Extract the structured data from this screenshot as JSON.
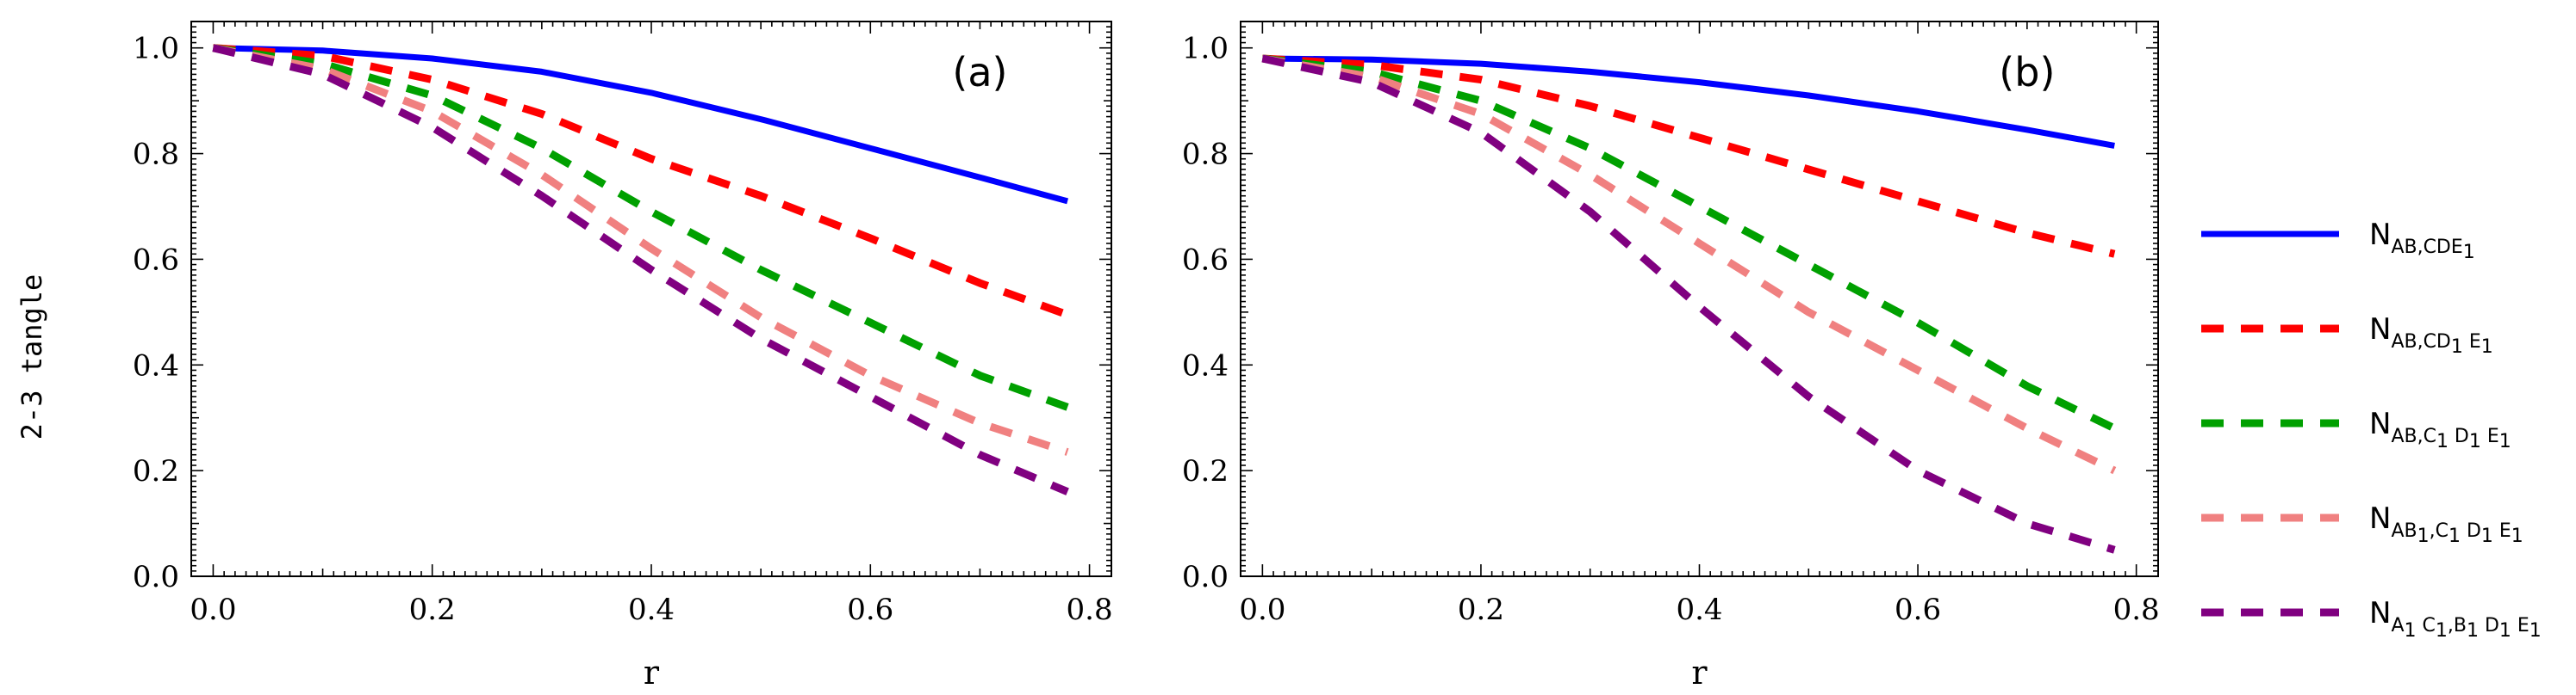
{
  "figure": {
    "ylabel": "2-3 tangle",
    "xlabel": "r"
  },
  "legend": [
    {
      "base": "N",
      "sub": "AB,CDE",
      "sub2": "1",
      "rest": []
    },
    {
      "base": "N",
      "sub": "AB,CD",
      "sub2": "1",
      "rest": [
        {
          "t": " E",
          "s": "1"
        }
      ]
    },
    {
      "base": "N",
      "sub": "AB,C",
      "sub2": "1",
      "rest": [
        {
          "t": " D",
          "s": "1"
        },
        {
          "t": " E",
          "s": "1"
        }
      ]
    },
    {
      "base": "N",
      "sub": "AB",
      "sub2": "1",
      "rest": [
        {
          "t": ",C",
          "s": "1"
        },
        {
          "t": " D",
          "s": "1"
        },
        {
          "t": " E",
          "s": "1"
        }
      ]
    },
    {
      "base": "N",
      "sub": "A",
      "sub2": "1",
      "rest": [
        {
          "t": " C",
          "s": "1"
        },
        {
          "t": ",B",
          "s": "1"
        },
        {
          "t": " D",
          "s": "1"
        },
        {
          "t": " E",
          "s": "1"
        }
      ]
    }
  ],
  "chart_data": [
    {
      "type": "line",
      "panel_label": "(a)",
      "xlabel": "r",
      "ylabel": "2-3 tangle",
      "xlim": [
        -0.02,
        0.82
      ],
      "ylim": [
        0.0,
        1.05
      ],
      "xticks": [
        "0.0",
        "0.2",
        "0.4",
        "0.6",
        "0.8"
      ],
      "yticks": [
        "0.0",
        "0.2",
        "0.4",
        "0.6",
        "0.8",
        "1.0"
      ],
      "x": [
        0.0,
        0.1,
        0.2,
        0.3,
        0.4,
        0.5,
        0.6,
        0.7,
        0.78
      ],
      "series": [
        {
          "name": "N_{AB,CDE1}",
          "color": "#0000ff",
          "dash": "solid",
          "values": [
            1.0,
            0.995,
            0.98,
            0.955,
            0.915,
            0.865,
            0.81,
            0.755,
            0.71
          ]
        },
        {
          "name": "N_{AB,CD1E1}",
          "color": "#ff0000",
          "dash": "dashed",
          "values": [
            1.0,
            0.985,
            0.94,
            0.875,
            0.79,
            0.72,
            0.64,
            0.555,
            0.495
          ]
        },
        {
          "name": "N_{AB,C1D1E1}",
          "color": "#00a000",
          "dash": "dashed",
          "values": [
            1.0,
            0.97,
            0.91,
            0.81,
            0.69,
            0.58,
            0.48,
            0.38,
            0.32
          ]
        },
        {
          "name": "N_{AB1,C1D1E1}",
          "color": "#f08080",
          "dash": "dashed",
          "values": [
            1.0,
            0.96,
            0.88,
            0.76,
            0.62,
            0.49,
            0.38,
            0.29,
            0.235
          ]
        },
        {
          "name": "N_{A1C1,B1D1E1}",
          "color": "#800080",
          "dash": "dashed",
          "values": [
            1.0,
            0.95,
            0.85,
            0.72,
            0.58,
            0.45,
            0.34,
            0.23,
            0.16
          ]
        }
      ]
    },
    {
      "type": "line",
      "panel_label": "(b)",
      "xlabel": "r",
      "ylabel": "2-3 tangle",
      "xlim": [
        -0.02,
        0.82
      ],
      "ylim": [
        0.0,
        1.05
      ],
      "xticks": [
        "0.0",
        "0.2",
        "0.4",
        "0.6",
        "0.8"
      ],
      "yticks": [
        "0.0",
        "0.2",
        "0.4",
        "0.6",
        "0.8",
        "1.0"
      ],
      "x": [
        0.0,
        0.1,
        0.2,
        0.3,
        0.4,
        0.5,
        0.6,
        0.7,
        0.78
      ],
      "series": [
        {
          "name": "N_{AB,CDE1}",
          "color": "#0000ff",
          "dash": "solid",
          "values": [
            0.98,
            0.978,
            0.97,
            0.955,
            0.935,
            0.91,
            0.88,
            0.845,
            0.815
          ]
        },
        {
          "name": "N_{AB,CD1E1}",
          "color": "#ff0000",
          "dash": "dashed",
          "values": [
            0.98,
            0.968,
            0.94,
            0.89,
            0.83,
            0.77,
            0.71,
            0.65,
            0.61
          ]
        },
        {
          "name": "N_{AB,C1D1E1}",
          "color": "#00a000",
          "dash": "dashed",
          "values": [
            0.98,
            0.955,
            0.9,
            0.81,
            0.7,
            0.59,
            0.48,
            0.36,
            0.28
          ]
        },
        {
          "name": "N_{AB1,C1D1E1}",
          "color": "#f08080",
          "dash": "dashed",
          "values": [
            0.98,
            0.945,
            0.875,
            0.76,
            0.63,
            0.5,
            0.39,
            0.28,
            0.2
          ]
        },
        {
          "name": "N_{A1C1,B1D1E1}",
          "color": "#800080",
          "dash": "dashed",
          "values": [
            0.98,
            0.935,
            0.84,
            0.69,
            0.51,
            0.34,
            0.2,
            0.1,
            0.05
          ]
        }
      ]
    }
  ]
}
